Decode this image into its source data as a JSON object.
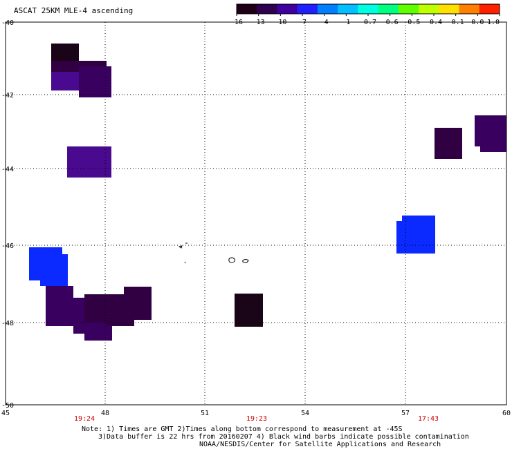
{
  "title": "ASCAT 25KM MLE-4 ascending",
  "colorbar": {
    "labels": [
      "-16",
      "-13",
      "-10",
      "-7",
      "-4",
      "-1",
      "-0.7",
      "-0.6",
      "-0.5",
      "-0.4",
      "-0.1",
      "0.0",
      "1.0"
    ],
    "colors": [
      "#200018",
      "#300050",
      "#4000a0",
      "#2020ff",
      "#0080ff",
      "#00c0ff",
      "#00ffe0",
      "#00ff80",
      "#60ff00",
      "#c0ff00",
      "#ffe000",
      "#ff8000",
      "#ff2000"
    ]
  },
  "axes": {
    "x_ticks": [
      "45",
      "48",
      "51",
      "54",
      "57",
      "60"
    ],
    "y_ticks": [
      "-40",
      "-42",
      "-44",
      "-46",
      "-48",
      "-50"
    ]
  },
  "pass_times": [
    "19:24",
    "19:23",
    "17:43"
  ],
  "notes": {
    "line1": "Note: 1) Times are GMT 2)Times along bottom correspond to measurement at -45S",
    "line2": "3)Data buffer is 22 hrs from 20160207 4) Black wind barbs indicate possible contamination",
    "line3": "NOAA/NESDIS/Center for Satellite Applications and Research"
  },
  "palette": {
    "very_dark": "#1a0418",
    "dark_purple": "#300042",
    "purple": "#3a0060",
    "violet": "#4a0a90",
    "blue": "#0a2aff"
  }
}
